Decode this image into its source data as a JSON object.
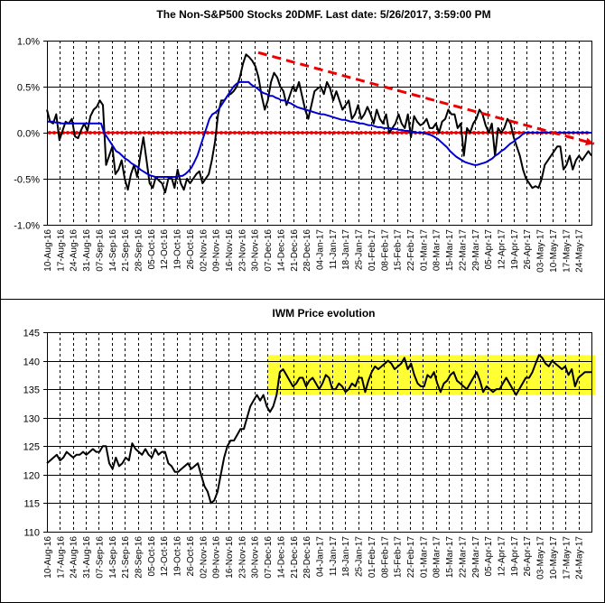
{
  "chart_data": [
    {
      "type": "line",
      "title": "The Non-S&P500 Stocks 20DMF. Last date: 5/26/2017, 3:59:00 PM",
      "ylim": [
        -1.0,
        1.0
      ],
      "y_ticks": [
        "1.0%",
        "0.5%",
        "0.0%",
        "-0.5%",
        "-1.0%"
      ],
      "y_tick_values": [
        1.0,
        0.5,
        0.0,
        -0.5,
        -1.0
      ],
      "x_ticks": [
        "10-Aug-16",
        "17-Aug-16",
        "24-Aug-16",
        "31-Aug-16",
        "07-Sep-16",
        "14-Sep-16",
        "21-Sep-16",
        "28-Sep-16",
        "05-Oct-16",
        "12-Oct-16",
        "19-Oct-16",
        "26-Oct-16",
        "02-Nov-16",
        "09-Nov-16",
        "16-Nov-16",
        "23-Nov-16",
        "30-Nov-16",
        "07-Dec-16",
        "14-Dec-16",
        "21-Dec-16",
        "28-Dec-16",
        "04-Jan-17",
        "11-Jan-17",
        "18-Jan-17",
        "25-Jan-17",
        "01-Feb-17",
        "08-Feb-17",
        "15-Feb-17",
        "22-Feb-17",
        "01-Mar-17",
        "08-Mar-17",
        "15-Mar-17",
        "22-Mar-17",
        "29-Mar-17",
        "05-Apr-17",
        "12-Apr-17",
        "19-Apr-17",
        "26-Apr-17",
        "03-May-17",
        "10-May-17",
        "17-May-17",
        "24-May-17"
      ],
      "grid": true,
      "colors": {
        "series": "#000000",
        "average": "#0000cc",
        "zero_line": "#ee0000",
        "trend": "#ee0000"
      },
      "series": [
        {
          "values": [
            0.25,
            0.12,
            0.1,
            0.2,
            -0.08,
            0.02,
            0.12,
            0.1,
            0.15,
            -0.04,
            -0.06,
            0.03,
            0.1,
            0.02,
            0.18,
            0.25,
            0.28,
            0.35,
            0.3,
            -0.35,
            -0.25,
            -0.15,
            -0.45,
            -0.4,
            -0.3,
            -0.5,
            -0.62,
            -0.45,
            -0.35,
            -0.48,
            -0.25,
            -0.05,
            -0.3,
            -0.55,
            -0.6,
            -0.48,
            -0.52,
            -0.55,
            -0.65,
            -0.5,
            -0.48,
            -0.6,
            -0.4,
            -0.55,
            -0.62,
            -0.5,
            -0.55,
            -0.5,
            -0.45,
            -0.42,
            -0.55,
            -0.5,
            -0.45,
            -0.3,
            -0.1,
            0.2,
            0.35,
            0.35,
            0.4,
            0.42,
            0.45,
            0.5,
            0.6,
            0.75,
            0.85,
            0.82,
            0.78,
            0.72,
            0.6,
            0.4,
            0.25,
            0.35,
            0.55,
            0.65,
            0.6,
            0.5,
            0.45,
            0.3,
            0.4,
            0.5,
            0.45,
            0.55,
            0.4,
            0.25,
            0.15,
            0.3,
            0.45,
            0.48,
            0.5,
            0.42,
            0.55,
            0.48,
            0.35,
            0.45,
            0.35,
            0.25,
            0.3,
            0.35,
            0.15,
            0.2,
            0.3,
            0.15,
            0.2,
            0.28,
            0.2,
            0.1,
            0.25,
            0.15,
            0.1,
            0.2,
            0.0,
            0.05,
            0.1,
            0.2,
            0.1,
            0.05,
            0.2,
            -0.05,
            0.18,
            0.12,
            0.08,
            0.1,
            0.15,
            0.05,
            0.05,
            0.1,
            0.0,
            0.12,
            0.15,
            0.25,
            0.2,
            0.2,
            0.05,
            0.1,
            -0.25,
            0.05,
            0.0,
            0.1,
            0.15,
            0.25,
            0.2,
            0.08,
            0.0,
            0.1,
            -0.25,
            0.05,
            0.0,
            0.05,
            0.15,
            0.1,
            -0.05,
            -0.15,
            -0.25,
            -0.4,
            -0.5,
            -0.55,
            -0.6,
            -0.58,
            -0.6,
            -0.5,
            -0.35,
            -0.3,
            -0.25,
            -0.2,
            -0.15,
            -0.15,
            -0.4,
            -0.35,
            -0.25,
            -0.4,
            -0.3,
            -0.25,
            -0.3,
            -0.25,
            -0.2,
            -0.25
          ]
        },
        {
          "values": [
            0.12,
            0.12,
            0.12,
            0.11,
            0.11,
            0.1,
            0.1,
            0.1,
            0.1,
            0.1,
            0.1,
            0.1,
            0.1,
            0.1,
            0.1,
            0.1,
            0.1,
            0.1,
            0.1,
            0.0,
            -0.05,
            -0.1,
            -0.15,
            -0.2,
            -0.22,
            -0.25,
            -0.28,
            -0.3,
            -0.33,
            -0.35,
            -0.37,
            -0.4,
            -0.42,
            -0.44,
            -0.46,
            -0.47,
            -0.48,
            -0.48,
            -0.48,
            -0.48,
            -0.48,
            -0.48,
            -0.48,
            -0.48,
            -0.47,
            -0.47,
            -0.45,
            -0.42,
            -0.38,
            -0.32,
            -0.25,
            -0.15,
            -0.05,
            0.05,
            0.15,
            0.2,
            0.22,
            0.25,
            0.3,
            0.35,
            0.4,
            0.45,
            0.5,
            0.53,
            0.55,
            0.55,
            0.55,
            0.55,
            0.52,
            0.5,
            0.48,
            0.45,
            0.43,
            0.42,
            0.4,
            0.4,
            0.38,
            0.37,
            0.35,
            0.35,
            0.33,
            0.32,
            0.3,
            0.28,
            0.27,
            0.26,
            0.25,
            0.24,
            0.23,
            0.22,
            0.21,
            0.2,
            0.2,
            0.19,
            0.18,
            0.17,
            0.16,
            0.15,
            0.14,
            0.14,
            0.13,
            0.12,
            0.12,
            0.11,
            0.1,
            0.1,
            0.09,
            0.08,
            0.08,
            0.07,
            0.06,
            0.06,
            0.05,
            0.05,
            0.05,
            0.04,
            0.04,
            0.03,
            0.03,
            0.02,
            0.02,
            0.01,
            0.01,
            0.0,
            0.0,
            0.0,
            -0.01,
            -0.02,
            -0.03,
            -0.05,
            -0.07,
            -0.1,
            -0.13,
            -0.16,
            -0.2,
            -0.23,
            -0.26,
            -0.28,
            -0.3,
            -0.32,
            -0.33,
            -0.34,
            -0.35,
            -0.35,
            -0.34,
            -0.33,
            -0.32,
            -0.3,
            -0.28,
            -0.25,
            -0.23,
            -0.2,
            -0.18,
            -0.15,
            -0.12,
            -0.1,
            -0.07,
            -0.05,
            -0.02,
            0.0,
            0.0,
            0.0,
            0.0,
            0.0,
            0.0,
            0.0,
            0.0,
            0.0,
            0.0,
            0.0,
            0.0,
            0.0,
            0.0,
            0.0,
            0.0,
            0.0,
            0.0,
            0.0,
            0.0,
            0.0,
            0.0,
            0.0
          ]
        }
      ],
      "trend_line": {
        "from": [
          16.3,
          0.87
        ],
        "to": [
          42.2,
          -0.12
        ]
      }
    },
    {
      "type": "line",
      "title": "IWM Price evolution",
      "ylim": [
        110,
        145
      ],
      "y_ticks": [
        "145",
        "140",
        "135",
        "130",
        "125",
        "120",
        "115",
        "110"
      ],
      "y_tick_values": [
        145,
        140,
        135,
        130,
        125,
        120,
        115,
        110
      ],
      "x_ticks": [
        "10-Aug-16",
        "17-Aug-16",
        "24-Aug-16",
        "31-Aug-16",
        "07-Sep-16",
        "14-Sep-16",
        "21-Sep-16",
        "28-Sep-16",
        "05-Oct-16",
        "12-Oct-16",
        "19-Oct-16",
        "26-Oct-16",
        "02-Nov-16",
        "09-Nov-16",
        "16-Nov-16",
        "23-Nov-16",
        "30-Nov-16",
        "07-Dec-16",
        "14-Dec-16",
        "21-Dec-16",
        "28-Dec-16",
        "04-Jan-17",
        "11-Jan-17",
        "18-Jan-17",
        "25-Jan-17",
        "01-Feb-17",
        "08-Feb-17",
        "15-Feb-17",
        "22-Feb-17",
        "01-Mar-17",
        "08-Mar-17",
        "15-Mar-17",
        "22-Mar-17",
        "29-Mar-17",
        "05-Apr-17",
        "12-Apr-17",
        "19-Apr-17",
        "26-Apr-17",
        "03-May-17",
        "10-May-17",
        "17-May-17",
        "24-May-17"
      ],
      "grid": true,
      "colors": {
        "series": "#000000",
        "highlight": "#ffff33"
      },
      "highlight_band": {
        "x_from": 17.0,
        "x_to": 42.3,
        "y_from": 134,
        "y_to": 141
      },
      "series": [
        {
          "values": [
            122,
            122.5,
            123,
            123.5,
            122.5,
            123,
            124,
            123.5,
            123,
            123.5,
            123.5,
            124,
            123.5,
            124,
            124.5,
            124,
            124,
            125,
            125,
            122,
            121,
            123,
            121.5,
            122,
            123,
            122.5,
            125.5,
            124.5,
            124,
            123.5,
            124.5,
            123.5,
            123,
            124.5,
            123.5,
            124,
            124,
            122,
            121.5,
            120.5,
            120.5,
            121,
            121.5,
            122,
            121,
            121.5,
            122,
            120,
            118,
            117,
            115,
            115.5,
            117,
            120,
            123,
            125,
            126,
            126,
            127,
            128,
            128,
            130,
            132,
            133,
            134,
            133,
            134,
            132,
            131,
            132,
            134,
            138,
            138.5,
            137.5,
            136.5,
            135.5,
            136,
            137,
            137,
            135.5,
            136.5,
            137,
            136,
            135,
            136,
            137.5,
            137,
            135,
            135,
            136,
            135.5,
            134.5,
            135,
            136,
            135.5,
            137,
            137,
            134.5,
            136.5,
            138,
            139,
            138.5,
            139,
            139.5,
            140,
            139.5,
            138.5,
            139,
            139.5,
            140.5,
            138.5,
            139.5,
            137.5,
            136,
            135.5,
            135.5,
            137.5,
            137,
            138,
            136,
            134.5,
            136,
            136.5,
            137.5,
            138,
            136.5,
            136,
            135.5,
            135,
            136,
            137,
            138,
            136.5,
            134.5,
            135.5,
            135,
            134.5,
            135,
            135,
            136,
            137,
            136,
            135,
            134,
            135,
            136,
            137,
            137,
            138,
            139.5,
            141,
            140.5,
            139.5,
            139,
            140,
            139.5,
            139,
            138.5,
            139,
            137.5,
            138.5,
            135.5,
            137,
            137.5,
            138,
            138,
            138
          ]
        }
      ]
    }
  ]
}
